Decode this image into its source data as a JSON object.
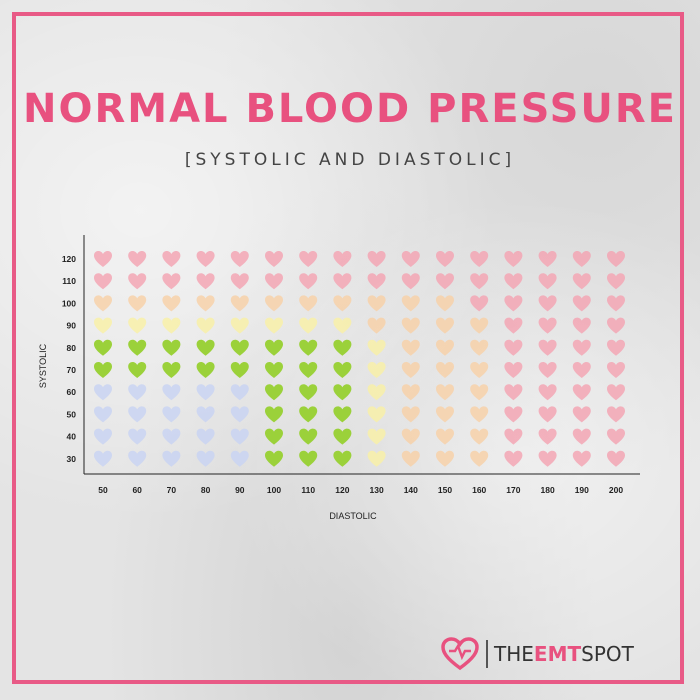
{
  "title": "NORMAL BLOOD PRESSURE",
  "subtitle": "[SYSTOLIC AND DIASTOLIC]",
  "brand": {
    "part1": "THE",
    "part2": "EMT",
    "part3": "SPOT"
  },
  "colors": {
    "accent": "#e85a86",
    "normal": "#9bd13a",
    "low": "#c9d3f2",
    "elevated": "#f8f0a8",
    "stage1": "#f7d1a9",
    "high": "#f3a6b4"
  },
  "chart_data": {
    "type": "heatmap",
    "title": "NORMAL BLOOD PRESSURE",
    "subtitle": "[SYSTOLIC AND DIASTOLIC]",
    "xlabel": "DIASTOLIC",
    "ylabel": "SYSTOLIC",
    "x": [
      50,
      60,
      70,
      80,
      90,
      100,
      110,
      120,
      130,
      140,
      150,
      160,
      170,
      180,
      190,
      200
    ],
    "y": [
      120,
      110,
      100,
      90,
      80,
      70,
      60,
      50,
      40,
      30
    ],
    "rows": [
      [
        "high",
        "high",
        "high",
        "high",
        "high",
        "high",
        "high",
        "high",
        "high",
        "high",
        "high",
        "high",
        "high",
        "high",
        "high",
        "high"
      ],
      [
        "high",
        "high",
        "high",
        "high",
        "high",
        "high",
        "high",
        "high",
        "high",
        "high",
        "high",
        "high",
        "high",
        "high",
        "high",
        "high"
      ],
      [
        "stage1",
        "stage1",
        "stage1",
        "stage1",
        "stage1",
        "stage1",
        "stage1",
        "stage1",
        "stage1",
        "stage1",
        "stage1",
        "high",
        "high",
        "high",
        "high",
        "high"
      ],
      [
        "elevated",
        "elevated",
        "elevated",
        "elevated",
        "elevated",
        "elevated",
        "elevated",
        "elevated",
        "stage1",
        "stage1",
        "stage1",
        "stage1",
        "high",
        "high",
        "high",
        "high"
      ],
      [
        "normal",
        "normal",
        "normal",
        "normal",
        "normal",
        "normal",
        "normal",
        "normal",
        "elevated",
        "stage1",
        "stage1",
        "stage1",
        "high",
        "high",
        "high",
        "high"
      ],
      [
        "normal",
        "normal",
        "normal",
        "normal",
        "normal",
        "normal",
        "normal",
        "normal",
        "elevated",
        "stage1",
        "stage1",
        "stage1",
        "high",
        "high",
        "high",
        "high"
      ],
      [
        "low",
        "low",
        "low",
        "low",
        "low",
        "normal",
        "normal",
        "normal",
        "elevated",
        "stage1",
        "stage1",
        "stage1",
        "high",
        "high",
        "high",
        "high"
      ],
      [
        "low",
        "low",
        "low",
        "low",
        "low",
        "normal",
        "normal",
        "normal",
        "elevated",
        "stage1",
        "stage1",
        "stage1",
        "high",
        "high",
        "high",
        "high"
      ],
      [
        "low",
        "low",
        "low",
        "low",
        "low",
        "normal",
        "normal",
        "normal",
        "elevated",
        "stage1",
        "stage1",
        "stage1",
        "high",
        "high",
        "high",
        "high"
      ],
      [
        "low",
        "low",
        "low",
        "low",
        "low",
        "normal",
        "normal",
        "normal",
        "elevated",
        "stage1",
        "stage1",
        "stage1",
        "high",
        "high",
        "high",
        "high"
      ]
    ]
  }
}
